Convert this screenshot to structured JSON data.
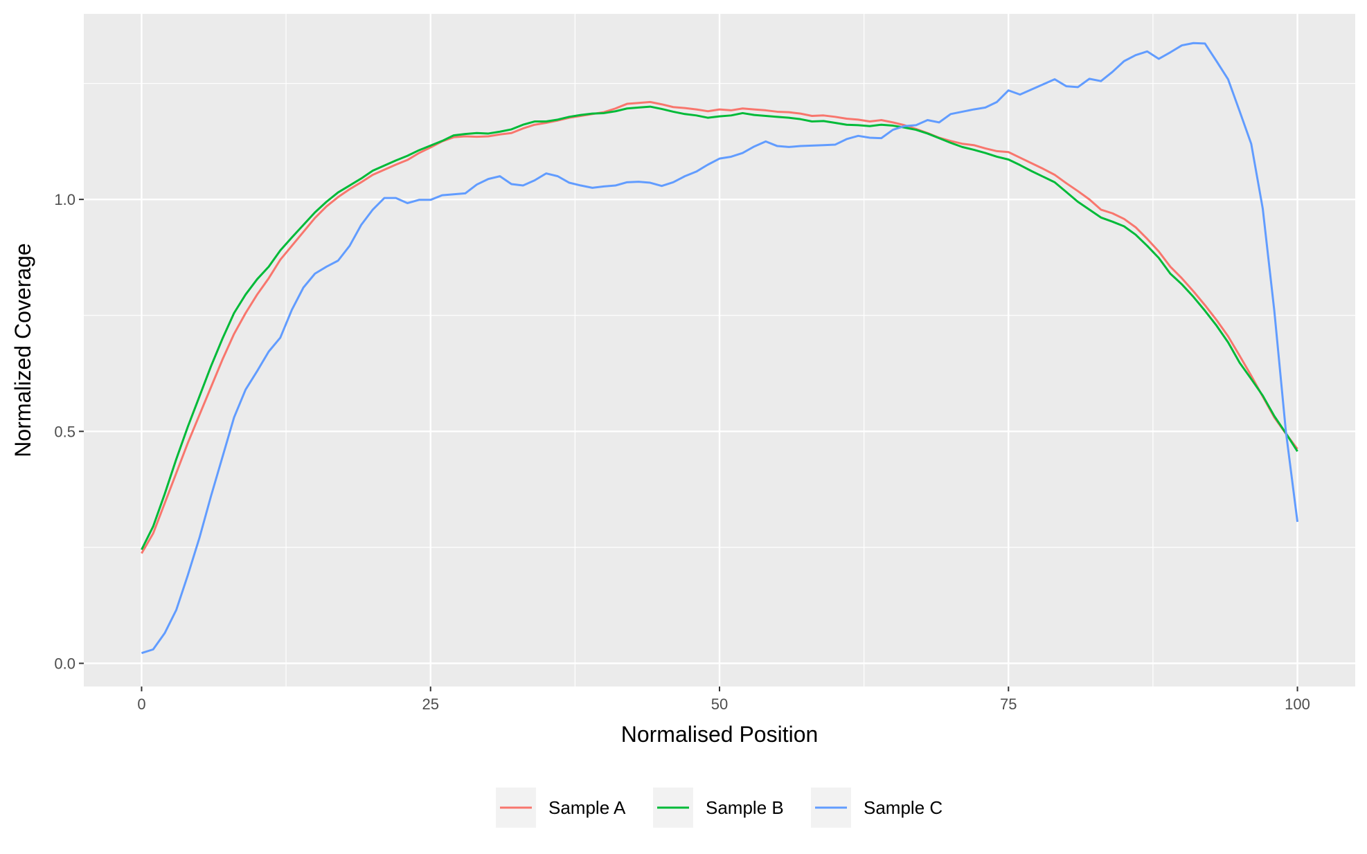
{
  "chart_data": {
    "type": "line",
    "title": "",
    "xlabel": "Normalised Position",
    "ylabel": "Normalized Coverage",
    "xlim": [
      -5,
      105
    ],
    "ylim": [
      -0.05,
      1.4
    ],
    "x_ticks": [
      0,
      25,
      50,
      75,
      100
    ],
    "x_tick_labels": [
      "0",
      "25",
      "50",
      "75",
      "100"
    ],
    "y_ticks": [
      0,
      0.5,
      1.0
    ],
    "y_tick_labels": [
      "0.0",
      "0.5",
      "1.0"
    ],
    "grid": true,
    "panel_background": "#ebebeb",
    "legend_position": "bottom",
    "x": [
      0,
      1,
      2,
      3,
      4,
      5,
      6,
      7,
      8,
      9,
      10,
      11,
      12,
      13,
      14,
      15,
      16,
      17,
      18,
      19,
      20,
      21,
      22,
      23,
      24,
      25,
      26,
      27,
      28,
      29,
      30,
      31,
      32,
      33,
      34,
      35,
      36,
      37,
      38,
      39,
      40,
      41,
      42,
      43,
      44,
      45,
      46,
      47,
      48,
      49,
      50,
      51,
      52,
      53,
      54,
      55,
      56,
      57,
      58,
      59,
      60,
      61,
      62,
      63,
      64,
      65,
      66,
      67,
      68,
      69,
      70,
      71,
      72,
      73,
      74,
      75,
      76,
      77,
      78,
      79,
      80,
      81,
      82,
      83,
      84,
      85,
      86,
      87,
      88,
      89,
      90,
      91,
      92,
      93,
      94,
      95,
      96,
      97,
      98,
      99,
      100
    ],
    "series": [
      {
        "name": "Sample A",
        "color": "#F8766D",
        "values": [
          0.237,
          0.28,
          0.345,
          0.41,
          0.475,
          0.535,
          0.595,
          0.655,
          0.71,
          0.755,
          0.795,
          0.83,
          0.87,
          0.9,
          0.93,
          0.96,
          0.985,
          1.005,
          1.022,
          1.037,
          1.053,
          1.064,
          1.075,
          1.085,
          1.1,
          1.112,
          1.125,
          1.134,
          1.136,
          1.135,
          1.136,
          1.14,
          1.143,
          1.153,
          1.161,
          1.165,
          1.17,
          1.176,
          1.18,
          1.184,
          1.188,
          1.196,
          1.206,
          1.208,
          1.21,
          1.205,
          1.199,
          1.197,
          1.194,
          1.19,
          1.194,
          1.192,
          1.196,
          1.194,
          1.192,
          1.189,
          1.188,
          1.185,
          1.18,
          1.181,
          1.178,
          1.174,
          1.172,
          1.168,
          1.171,
          1.166,
          1.16,
          1.152,
          1.143,
          1.133,
          1.126,
          1.12,
          1.117,
          1.11,
          1.104,
          1.102,
          1.09,
          1.078,
          1.066,
          1.053,
          1.035,
          1.018,
          1.0,
          0.978,
          0.97,
          0.958,
          0.94,
          0.915,
          0.888,
          0.855,
          0.83,
          0.802,
          0.772,
          0.74,
          0.705,
          0.663,
          0.62,
          0.575,
          0.53,
          0.495,
          0.462
        ]
      },
      {
        "name": "Sample B",
        "color": "#00BA38",
        "values": [
          0.245,
          0.295,
          0.365,
          0.44,
          0.51,
          0.575,
          0.64,
          0.7,
          0.755,
          0.795,
          0.828,
          0.855,
          0.89,
          0.918,
          0.945,
          0.972,
          0.995,
          1.015,
          1.03,
          1.045,
          1.062,
          1.073,
          1.084,
          1.094,
          1.106,
          1.116,
          1.126,
          1.138,
          1.141,
          1.143,
          1.142,
          1.146,
          1.151,
          1.161,
          1.168,
          1.168,
          1.172,
          1.178,
          1.182,
          1.185,
          1.186,
          1.19,
          1.196,
          1.198,
          1.2,
          1.195,
          1.189,
          1.184,
          1.181,
          1.176,
          1.179,
          1.181,
          1.186,
          1.182,
          1.18,
          1.178,
          1.176,
          1.173,
          1.168,
          1.169,
          1.165,
          1.161,
          1.16,
          1.158,
          1.161,
          1.159,
          1.155,
          1.15,
          1.142,
          1.132,
          1.122,
          1.113,
          1.107,
          1.1,
          1.092,
          1.086,
          1.074,
          1.061,
          1.049,
          1.037,
          1.016,
          0.995,
          0.978,
          0.961,
          0.952,
          0.942,
          0.924,
          0.9,
          0.874,
          0.84,
          0.817,
          0.79,
          0.76,
          0.728,
          0.692,
          0.648,
          0.613,
          0.577,
          0.533,
          0.496,
          0.457
        ]
      },
      {
        "name": "Sample C",
        "color": "#619CFF",
        "values": [
          0.022,
          0.03,
          0.065,
          0.115,
          0.19,
          0.27,
          0.36,
          0.445,
          0.53,
          0.59,
          0.63,
          0.672,
          0.702,
          0.762,
          0.81,
          0.84,
          0.855,
          0.868,
          0.9,
          0.945,
          0.978,
          1.003,
          1.003,
          0.992,
          0.999,
          0.999,
          1.009,
          1.011,
          1.013,
          1.032,
          1.044,
          1.05,
          1.033,
          1.03,
          1.041,
          1.056,
          1.05,
          1.036,
          1.03,
          1.025,
          1.028,
          1.03,
          1.037,
          1.038,
          1.036,
          1.029,
          1.037,
          1.05,
          1.06,
          1.075,
          1.088,
          1.092,
          1.1,
          1.114,
          1.125,
          1.115,
          1.113,
          1.115,
          1.116,
          1.117,
          1.118,
          1.13,
          1.137,
          1.133,
          1.132,
          1.15,
          1.158,
          1.16,
          1.171,
          1.166,
          1.184,
          1.189,
          1.194,
          1.198,
          1.21,
          1.235,
          1.226,
          1.237,
          1.248,
          1.259,
          1.244,
          1.242,
          1.26,
          1.255,
          1.275,
          1.298,
          1.311,
          1.319,
          1.303,
          1.317,
          1.332,
          1.337,
          1.336,
          1.298,
          1.259,
          1.19,
          1.12,
          0.98,
          0.76,
          0.5,
          0.305
        ]
      }
    ]
  }
}
